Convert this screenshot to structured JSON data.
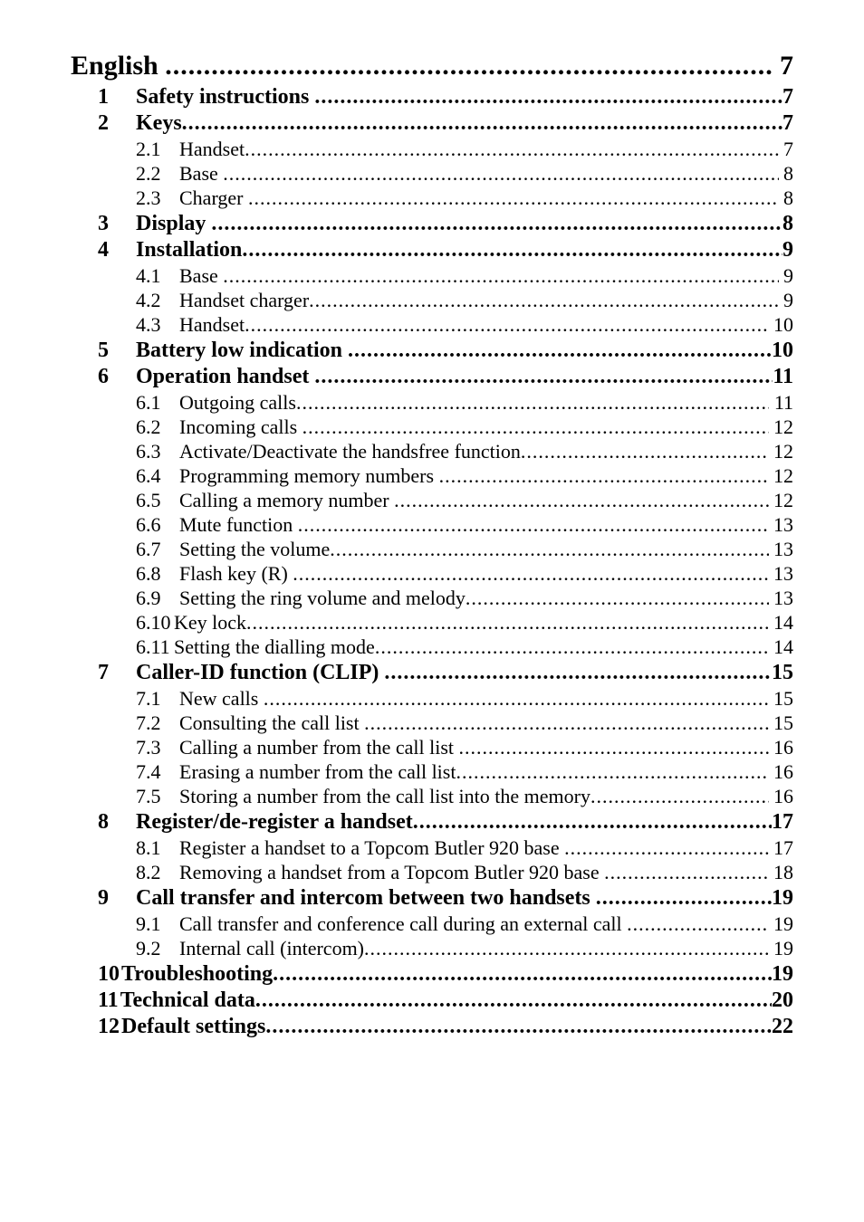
{
  "toc": [
    {
      "level": 0,
      "num": "",
      "title": "English ",
      "page": " 7"
    },
    {
      "level": 1,
      "num": "1",
      "title": "Safety instructions ",
      "page": "7"
    },
    {
      "level": 1,
      "num": "2",
      "title": "Keys",
      "page": "7"
    },
    {
      "level": 2,
      "num": "2.1",
      "title": "Handset",
      "page": " 7"
    },
    {
      "level": 2,
      "num": "2.2",
      "title": "Base ",
      "page": " 8"
    },
    {
      "level": 2,
      "num": "2.3",
      "title": "Charger ",
      "page": " 8"
    },
    {
      "level": 1,
      "num": "3",
      "title": "Display ",
      "page": "8"
    },
    {
      "level": 1,
      "num": "4",
      "title": "Installation",
      "page": "9"
    },
    {
      "level": 2,
      "num": "4.1",
      "title": "Base ",
      "page": " 9"
    },
    {
      "level": 2,
      "num": "4.2",
      "title": "Handset charger",
      "page": " 9"
    },
    {
      "level": 2,
      "num": "4.3",
      "title": "Handset",
      "page": " 10"
    },
    {
      "level": 1,
      "num": "5",
      "title": "Battery low indication ",
      "page": "10"
    },
    {
      "level": 1,
      "num": "6",
      "title": "Operation handset ",
      "page": "11"
    },
    {
      "level": 2,
      "num": "6.1",
      "title": "Outgoing calls",
      "page": " 11"
    },
    {
      "level": 2,
      "num": "6.2",
      "title": "Incoming calls ",
      "page": " 12"
    },
    {
      "level": 2,
      "num": "6.3",
      "title": "Activate/Deactivate the handsfree function",
      "page": " 12"
    },
    {
      "level": 2,
      "num": "6.4",
      "title": "Programming memory numbers ",
      "page": " 12"
    },
    {
      "level": 2,
      "num": "6.5",
      "title": "Calling a memory number ",
      "page": " 12"
    },
    {
      "level": 2,
      "num": "6.6",
      "title": "Mute function ",
      "page": " 13"
    },
    {
      "level": 2,
      "num": "6.7",
      "title": "Setting the volume",
      "page": " 13"
    },
    {
      "level": 2,
      "num": "6.8",
      "title": "Flash key (R) ",
      "page": " 13"
    },
    {
      "level": 2,
      "num": "6.9",
      "title": "Setting the ring volume and melody",
      "page": " 13"
    },
    {
      "level": 2,
      "num": "6.10",
      "title": "Key lock",
      "page": " 14",
      "nospace": true
    },
    {
      "level": 2,
      "num": "6.11",
      "title": "Setting the dialling mode",
      "page": " 14",
      "nospace": true
    },
    {
      "level": 1,
      "num": "7",
      "title": "Caller-ID function (CLIP) ",
      "page": "15"
    },
    {
      "level": 2,
      "num": "7.1",
      "title": "New calls ",
      "page": " 15"
    },
    {
      "level": 2,
      "num": "7.2",
      "title": "Consulting the call list ",
      "page": " 15"
    },
    {
      "level": 2,
      "num": "7.3",
      "title": "Calling a number from the call list ",
      "page": " 16"
    },
    {
      "level": 2,
      "num": "7.4",
      "title": "Erasing a number from the call list",
      "page": " 16"
    },
    {
      "level": 2,
      "num": "7.5",
      "title": "Storing a number from the call list into the memory",
      "page": " 16"
    },
    {
      "level": 1,
      "num": "8",
      "title": "Register/de-register a handset",
      "page": "17"
    },
    {
      "level": 2,
      "num": "8.1",
      "title": "Register a handset to a Topcom Butler 920 base ",
      "page": " 17"
    },
    {
      "level": 2,
      "num": "8.2",
      "title": "Removing a handset from a Topcom Butler 920 base ",
      "page": " 18"
    },
    {
      "level": 1,
      "num": "9",
      "title": "Call transfer and intercom between two handsets ",
      "page": "19"
    },
    {
      "level": 2,
      "num": "9.1",
      "title": "Call transfer and conference call during an external call ",
      "page": " 19"
    },
    {
      "level": 2,
      "num": "9.2",
      "title": "Internal call (intercom)",
      "page": " 19"
    },
    {
      "level": 1,
      "num": "10",
      "title": "Troubleshooting",
      "page": "19",
      "tight": true
    },
    {
      "level": 1,
      "num": "11",
      "title": "Technical data",
      "page": "20",
      "tight": true
    },
    {
      "level": 1,
      "num": "12",
      "title": "Default settings",
      "page": "22",
      "tight": true
    }
  ],
  "style": {
    "dot_char": ".",
    "background": "#ffffff",
    "text_color": "#000000"
  }
}
